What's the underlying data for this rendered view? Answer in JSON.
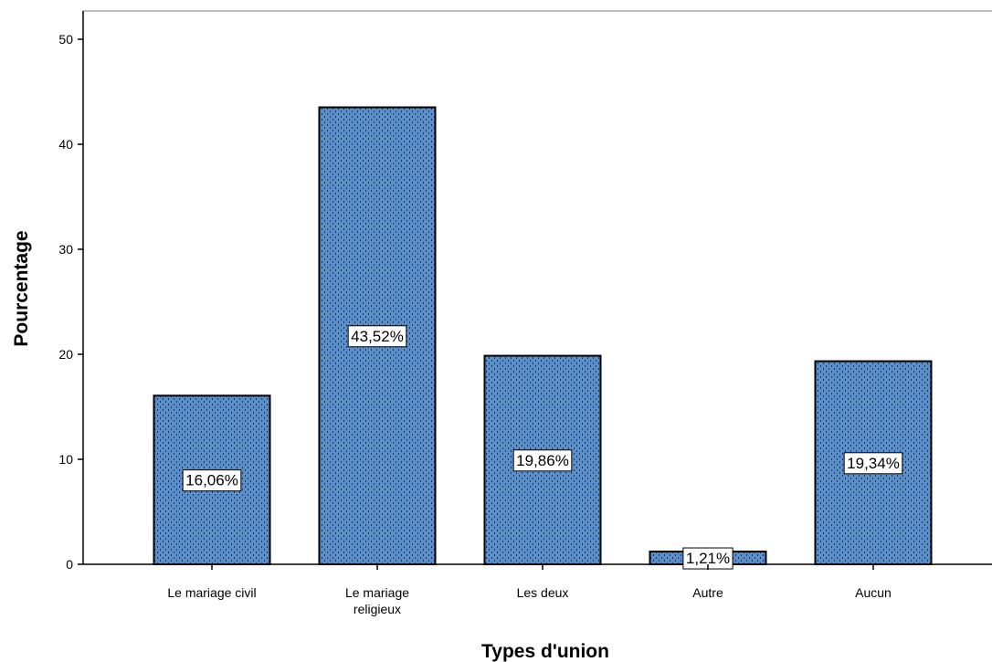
{
  "chart_data": {
    "type": "bar",
    "categories": [
      [
        "Le mariage civil"
      ],
      [
        "Le mariage",
        "religieux"
      ],
      [
        "Les deux"
      ],
      [
        "Autre"
      ],
      [
        "Aucun"
      ]
    ],
    "values": [
      16.06,
      43.52,
      19.86,
      1.21,
      19.34
    ],
    "data_labels": [
      "16,06%",
      "43,52%",
      "19,86%",
      "1,21%",
      "19,34%"
    ],
    "title": "",
    "xlabel": "Types d'union",
    "ylabel": "Pourcentage",
    "ylim": [
      0,
      52
    ],
    "yticks": [
      0,
      10,
      20,
      30,
      40,
      50
    ],
    "grid": false,
    "legend": "none",
    "colors": {
      "bar_fill": "#5b8fc9",
      "bar_stroke": "#000000",
      "pattern_dot": "#1d3557",
      "axis": "#000000",
      "frame": "#bdbdbd",
      "label_box": "#ffffff"
    }
  }
}
